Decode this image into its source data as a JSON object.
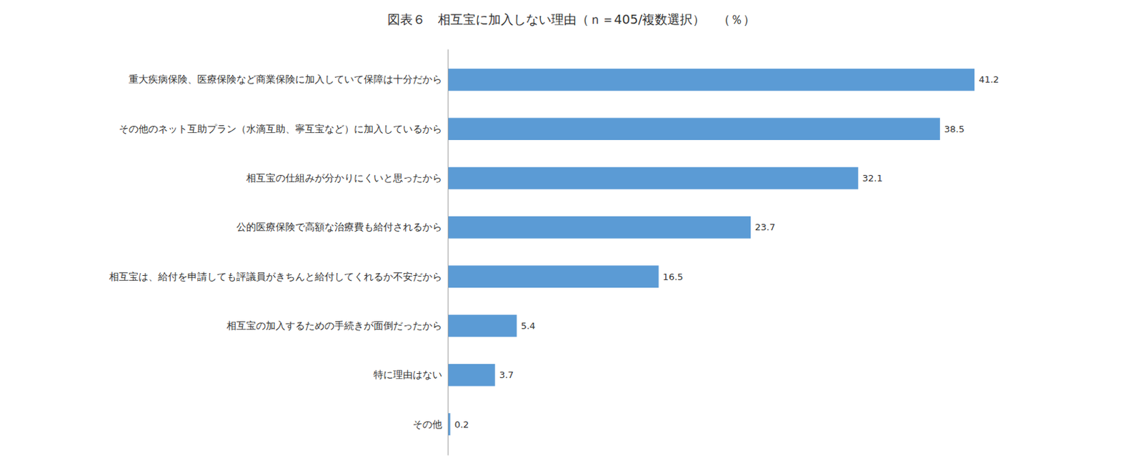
{
  "chart_data": {
    "type": "bar",
    "orientation": "horizontal",
    "title": "図表６　相互宝に加入しない理由（ｎ＝405/複数選択）　（％）",
    "categories": [
      "重大疾病保険、医療保険など商業保険に加入していて保障は十分だから",
      "その他のネット互助プラン（水滴互助、寧互宝など）に加入しているから",
      "相互宝の仕組みが分かりにくいと思ったから",
      "公的医療保険で高額な治療費も給付されるから",
      "相互宝は、給付を申請しても評議員がきちんと給付してくれるか不安だから",
      "相互宝の加入するための手続きが面倒だったから",
      "特に理由はない",
      "その他"
    ],
    "values": [
      41.2,
      38.5,
      32.1,
      23.7,
      16.5,
      5.4,
      3.7,
      0.2
    ],
    "color": "#5B9BD5",
    "xlim": [
      0,
      50
    ],
    "data_labels": true,
    "tick_labels": "y",
    "grid": false
  }
}
